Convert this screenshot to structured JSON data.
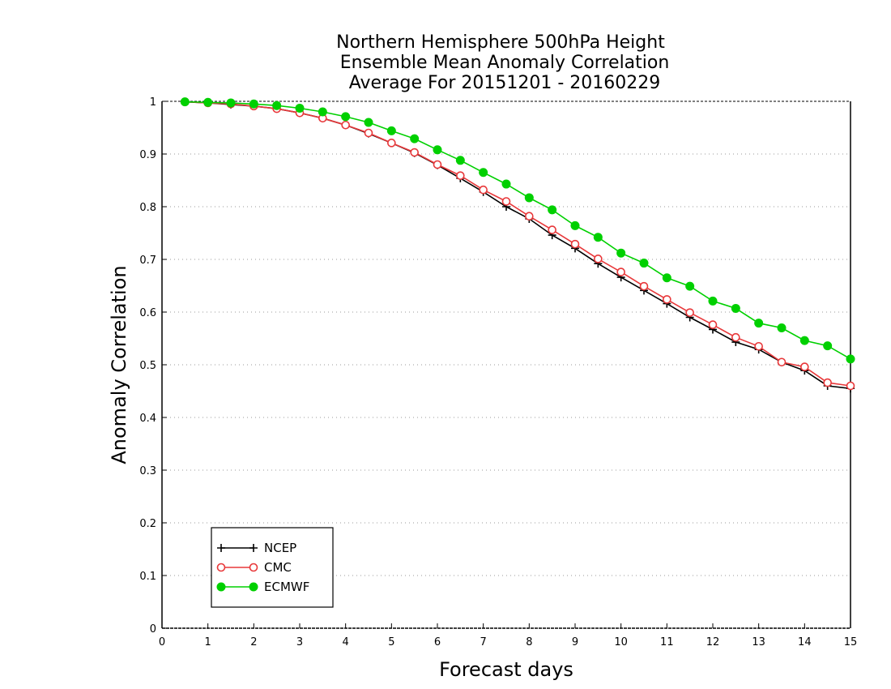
{
  "chart_data": {
    "type": "line",
    "title": [
      "Northern Hemisphere 500hPa Height",
      "Ensemble Mean Anomaly Correlation",
      "Average For 20151201 - 20160229"
    ],
    "xlabel": "Forecast days",
    "ylabel": "Anomaly Correlation",
    "xlim": [
      0,
      15
    ],
    "ylim": [
      0,
      1
    ],
    "xticks": [
      0,
      1,
      2,
      3,
      4,
      5,
      6,
      7,
      8,
      9,
      10,
      11,
      12,
      13,
      14,
      15
    ],
    "xtick_labels": [
      "0",
      "1",
      "2",
      "3",
      "4",
      "5",
      "6",
      "7",
      "8",
      "9",
      "10",
      "11",
      "12",
      "13",
      "14",
      "15"
    ],
    "yticks": [
      0,
      0.1,
      0.2,
      0.3,
      0.4,
      0.5,
      0.6,
      0.7,
      0.8,
      0.9,
      1
    ],
    "ytick_labels": [
      "0",
      "0.1",
      "0.2",
      "0.3",
      "0.4",
      "0.5",
      "0.6",
      "0.7",
      "0.8",
      "0.9",
      "1"
    ],
    "grid": "horizontal dotted",
    "legend_position": "bottom-left",
    "x": [
      0.5,
      1,
      1.5,
      2,
      2.5,
      3,
      3.5,
      4,
      4.5,
      5,
      5.5,
      6,
      6.5,
      7,
      7.5,
      8,
      8.5,
      9,
      9.5,
      10,
      10.5,
      11,
      11.5,
      12,
      12.5,
      13,
      13.5,
      14,
      14.5,
      15
    ],
    "series": [
      {
        "name": "NCEP",
        "color": "#000000",
        "marker": "plus",
        "values": [
          0.999,
          0.997,
          0.994,
          0.991,
          0.986,
          0.978,
          0.968,
          0.955,
          0.939,
          0.921,
          0.902,
          0.879,
          0.854,
          0.828,
          0.8,
          0.777,
          0.746,
          0.721,
          0.692,
          0.666,
          0.641,
          0.616,
          0.59,
          0.567,
          0.543,
          0.529,
          0.505,
          0.489,
          0.46,
          0.455
        ]
      },
      {
        "name": "CMC",
        "color": "#e8383a",
        "marker": "open-circle",
        "values": [
          0.999,
          0.997,
          0.995,
          0.991,
          0.986,
          0.978,
          0.968,
          0.955,
          0.94,
          0.921,
          0.903,
          0.88,
          0.859,
          0.832,
          0.81,
          0.782,
          0.756,
          0.729,
          0.701,
          0.676,
          0.649,
          0.624,
          0.599,
          0.576,
          0.552,
          0.535,
          0.505,
          0.496,
          0.466,
          0.46
        ]
      },
      {
        "name": "ECMWF",
        "color": "#00d000",
        "marker": "filled-circle",
        "values": [
          0.999,
          0.998,
          0.997,
          0.995,
          0.992,
          0.987,
          0.98,
          0.971,
          0.96,
          0.944,
          0.929,
          0.908,
          0.888,
          0.865,
          0.843,
          0.817,
          0.794,
          0.764,
          0.742,
          0.712,
          0.693,
          0.665,
          0.649,
          0.621,
          0.607,
          0.579,
          0.57,
          0.546,
          0.536,
          0.511
        ]
      }
    ]
  }
}
